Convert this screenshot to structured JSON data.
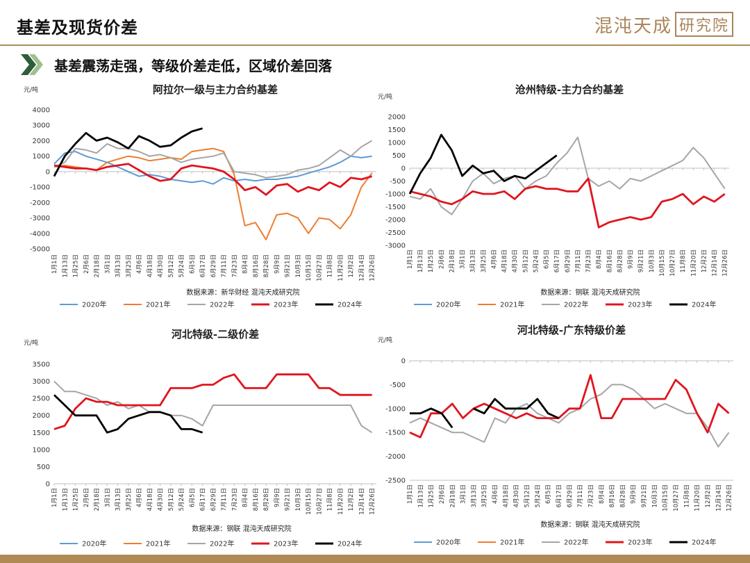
{
  "header": {
    "title": "基差及现货价差",
    "logo_main": "混沌天成",
    "logo_box": "研究院",
    "subtitle": "基差震荡走强，等级价差走低，区域价差回落"
  },
  "legend_labels": [
    "2020年",
    "2021年",
    "2022年",
    "2023年",
    "2024年"
  ],
  "series_colors": {
    "2020年": "#5b9bd5",
    "2021年": "#ed7d31",
    "2022年": "#a5a5a5",
    "2023年": "#e0141e",
    "2024年": "#000000"
  },
  "x_ticks": [
    "1月1日",
    "1月13日",
    "1月25日",
    "2月6日",
    "2月18日",
    "3月1日",
    "3月13日",
    "3月25日",
    "4月6日",
    "4月18日",
    "4月30日",
    "5月12日",
    "5月24日",
    "6月5日",
    "6月17日",
    "6月29日",
    "7月11日",
    "7月23日",
    "8月4日",
    "8月16日",
    "8月28日",
    "9月9日",
    "9月21日",
    "10月3日",
    "10月15日",
    "10月27日",
    "11月8日",
    "11月20日",
    "12月2日",
    "12月14日",
    "12月26日"
  ],
  "chart_data": [
    {
      "type": "line",
      "title": "阿拉尔一级与主力合约基差",
      "ylabel": "元/吨",
      "ylim": [
        -5000,
        4000
      ],
      "yticks": [
        -5000,
        -4000,
        -3000,
        -2000,
        -1000,
        0,
        1000,
        2000,
        3000,
        4000
      ],
      "source": "数据来源：新华财经  混沌天成研究院",
      "x_days": [
        1,
        13,
        25,
        37,
        49,
        61,
        73,
        85,
        97,
        109,
        121,
        133,
        145,
        157,
        169,
        181,
        193,
        205,
        217,
        229,
        241,
        253,
        265,
        277,
        289,
        301,
        313,
        325,
        337,
        349,
        361
      ],
      "series": [
        {
          "name": "2020年",
          "values": [
            500,
            1200,
            1300,
            1000,
            800,
            600,
            300,
            0,
            -300,
            -200,
            -300,
            -500,
            -600,
            -700,
            -600,
            -800,
            -400,
            -600,
            -500,
            -600,
            -500,
            -500,
            -400,
            -300,
            -100,
            100,
            300,
            600,
            1000,
            900,
            1000
          ]
        },
        {
          "name": "2021年",
          "values": [
            300,
            400,
            300,
            200,
            100,
            600,
            800,
            1000,
            900,
            700,
            800,
            900,
            800,
            1300,
            1400,
            1500,
            1300,
            -200,
            -3500,
            -3300,
            -4400,
            -2800,
            -2700,
            -3000,
            -4000,
            -3000,
            -3100,
            -3700,
            -2800,
            -1000,
            -100
          ]
        },
        {
          "name": "2022年",
          "values": [
            300,
            600,
            1500,
            1400,
            1200,
            1800,
            1500,
            1500,
            1300,
            1000,
            1100,
            900,
            600,
            800,
            900,
            1000,
            1200,
            0,
            -100,
            -200,
            -400,
            -300,
            -200,
            100,
            200,
            400,
            900,
            1400,
            1000,
            1600,
            2000
          ]
        },
        {
          "name": "2023年",
          "values": [
            400,
            300,
            200,
            200,
            100,
            300,
            400,
            500,
            100,
            -300,
            -600,
            -500,
            200,
            400,
            300,
            200,
            0,
            -500,
            -1200,
            -1000,
            -1500,
            -900,
            -800,
            -1300,
            -1000,
            -1200,
            -700,
            -1000,
            -400,
            -500,
            -300
          ]
        },
        {
          "name": "2024年",
          "values": [
            -300,
            1000,
            1800,
            2500,
            2000,
            2200,
            1900,
            1500,
            2300,
            2000,
            1600,
            1700,
            2200,
            2600,
            2800,
            null,
            null,
            null,
            null,
            null,
            null,
            null,
            null,
            null,
            null,
            null,
            null,
            null,
            null,
            null,
            null
          ]
        }
      ]
    },
    {
      "type": "line",
      "title": "沧州特级-主力合约基差",
      "ylabel": "元/吨",
      "ylim": [
        -3000,
        2000
      ],
      "yticks": [
        -3000,
        -2500,
        -2000,
        -1500,
        -1000,
        -500,
        0,
        500,
        1000,
        1500,
        2000
      ],
      "source": "数据来源：钢联  混沌天成研究院",
      "x_days": [
        1,
        13,
        25,
        37,
        49,
        61,
        73,
        85,
        97,
        109,
        121,
        133,
        145,
        157,
        169,
        181,
        193,
        205,
        217,
        229,
        241,
        253,
        265,
        277,
        289,
        301,
        313,
        325,
        337,
        349,
        361
      ],
      "series": [
        {
          "name": "2022年",
          "values": [
            -1100,
            -1200,
            -800,
            -1500,
            -1800,
            -1200,
            -500,
            -200,
            -600,
            -400,
            -300,
            -800,
            -500,
            -300,
            200,
            600,
            1200,
            -400,
            -700,
            -500,
            -800,
            -400,
            -500,
            -300,
            -100,
            100,
            300,
            800,
            400,
            -200,
            -800
          ]
        },
        {
          "name": "2023年",
          "values": [
            -900,
            -1000,
            -1100,
            -1300,
            -1400,
            -1200,
            -900,
            -1000,
            -1000,
            -900,
            -1200,
            -800,
            -700,
            -800,
            -800,
            -900,
            -900,
            -400,
            -2300,
            -2100,
            -2000,
            -1900,
            -2000,
            -1900,
            -1300,
            -1200,
            -1000,
            -1400,
            -1100,
            -1300,
            -1000
          ]
        },
        {
          "name": "2024年",
          "values": [
            -1000,
            -200,
            400,
            1300,
            700,
            -300,
            100,
            -200,
            -100,
            -500,
            -300,
            -400,
            -100,
            200,
            500,
            null,
            null,
            null,
            null,
            null,
            null,
            null,
            null,
            null,
            null,
            null,
            null,
            null,
            null,
            null,
            null
          ]
        }
      ]
    },
    {
      "type": "line",
      "title": "河北特级-二级价差",
      "ylabel": "元/吨",
      "ylim": [
        0,
        3500
      ],
      "yticks": [
        0,
        500,
        1000,
        1500,
        2000,
        2500,
        3000,
        3500
      ],
      "source": "数据来源：钢联  混沌天成研究院",
      "x_days": [
        1,
        13,
        25,
        37,
        49,
        61,
        73,
        85,
        97,
        109,
        121,
        133,
        145,
        157,
        169,
        181,
        193,
        205,
        217,
        229,
        241,
        253,
        265,
        277,
        289,
        301,
        313,
        325,
        337,
        349,
        361
      ],
      "series": [
        {
          "name": "2022年",
          "values": [
            3000,
            2700,
            2700,
            2600,
            2500,
            2300,
            2400,
            2200,
            2300,
            2100,
            2100,
            2000,
            2000,
            1900,
            1700,
            2300,
            2300,
            2300,
            2300,
            2300,
            2300,
            2300,
            2300,
            2300,
            2300,
            2300,
            2300,
            2300,
            2300,
            1700,
            1500
          ]
        },
        {
          "name": "2023年",
          "values": [
            1600,
            1700,
            2200,
            2500,
            2400,
            2400,
            2300,
            2300,
            2300,
            2300,
            2300,
            2800,
            2800,
            2800,
            2900,
            2900,
            3100,
            3200,
            2800,
            2800,
            2800,
            3200,
            3200,
            3200,
            3200,
            2800,
            2800,
            2600,
            2600,
            2600,
            2600
          ]
        },
        {
          "name": "2024年",
          "values": [
            2600,
            2300,
            2000,
            2000,
            2000,
            1500,
            1600,
            1900,
            2000,
            2100,
            2100,
            2000,
            1600,
            1600,
            1500,
            null,
            null,
            null,
            null,
            null,
            null,
            null,
            null,
            null,
            null,
            null,
            null,
            null,
            null,
            null,
            null
          ]
        }
      ]
    },
    {
      "type": "line",
      "title": "河北特级-广东特级价差",
      "ylabel": "元/吨",
      "ylim": [
        -2500,
        0
      ],
      "yticks": [
        -2500,
        -2000,
        -1500,
        -1000,
        -500,
        0
      ],
      "source": "数据来源：钢联  混沌天成研究院",
      "x_days": [
        1,
        13,
        25,
        37,
        49,
        61,
        73,
        85,
        97,
        109,
        121,
        133,
        145,
        157,
        169,
        181,
        193,
        205,
        217,
        229,
        241,
        253,
        265,
        277,
        289,
        301,
        313,
        325,
        337,
        349,
        361
      ],
      "series": [
        {
          "name": "2022年",
          "values": [
            -1300,
            -1200,
            -1300,
            -1400,
            -1500,
            -1500,
            -1600,
            -1700,
            -1200,
            -1300,
            -1000,
            -900,
            -1100,
            -1200,
            -1300,
            -1100,
            -1000,
            -800,
            -700,
            -500,
            -500,
            -600,
            -800,
            -1000,
            -900,
            -1000,
            -1100,
            -1100,
            -1400,
            -1800,
            -1500
          ]
        },
        {
          "name": "2023年",
          "values": [
            -1500,
            -1600,
            -1100,
            -1100,
            -900,
            -1200,
            -1000,
            -900,
            -1000,
            -1100,
            -1200,
            -1100,
            -1200,
            -1200,
            -1200,
            -1000,
            -1000,
            -300,
            -1200,
            -1200,
            -800,
            -800,
            -800,
            -800,
            -800,
            -400,
            -600,
            -1100,
            -1500,
            -900,
            -1100
          ]
        },
        {
          "name": "2024年",
          "values": [
            -1100,
            -1100,
            -1000,
            -1100,
            -1400,
            null,
            -1000,
            -1100,
            -800,
            -1000,
            -1000,
            -1000,
            -800,
            -1100,
            -1200,
            null,
            null,
            null,
            null,
            null,
            null,
            null,
            null,
            null,
            null,
            null,
            null,
            null,
            null,
            null,
            null
          ]
        }
      ]
    }
  ]
}
